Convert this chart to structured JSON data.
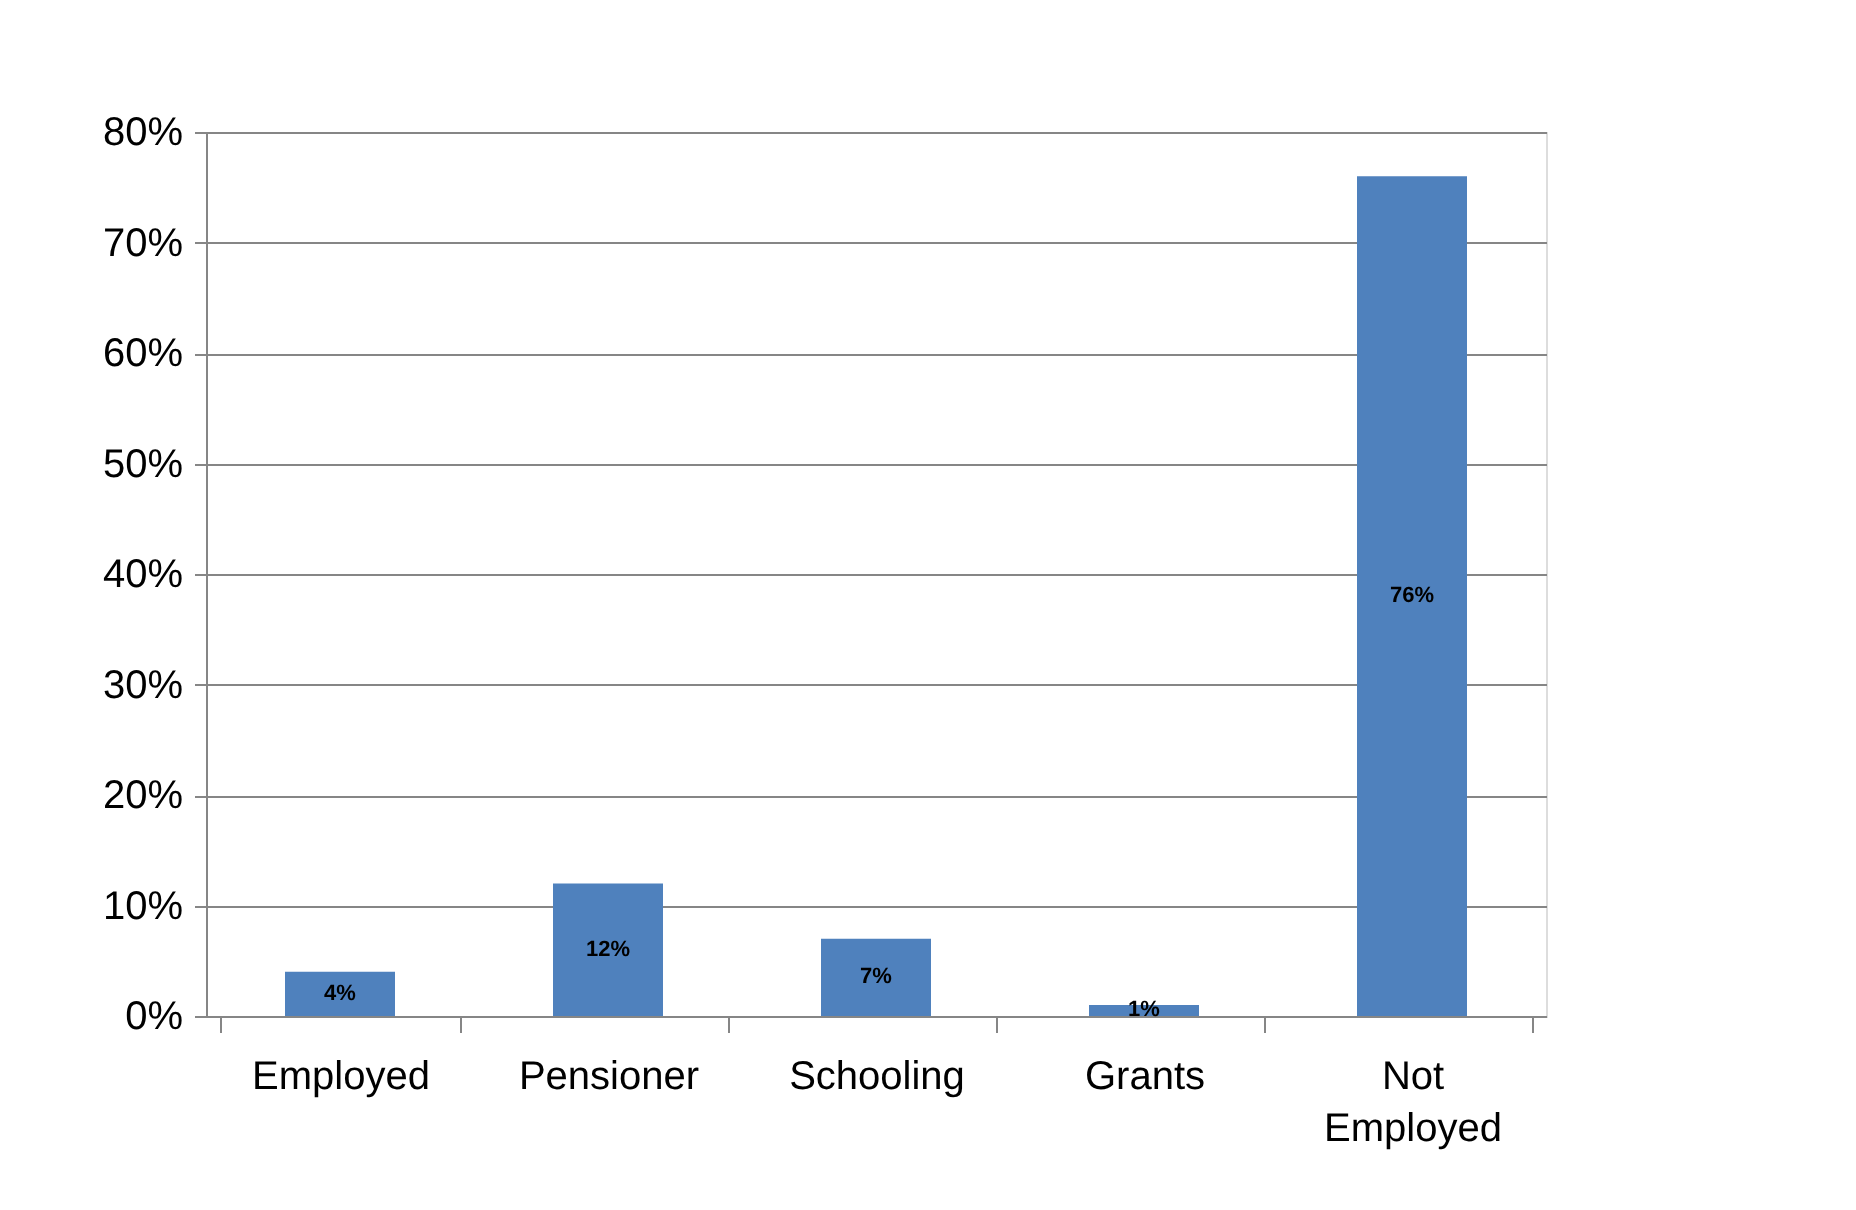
{
  "chart_data": {
    "type": "bar",
    "categories": [
      "Employed",
      "Pensioner",
      "Schooling",
      "Grants",
      "Not Employed"
    ],
    "values": [
      4,
      12,
      7,
      1,
      76
    ],
    "value_labels": [
      "4%",
      "12%",
      "7%",
      "1%",
      "76%"
    ],
    "color": "#4f81bd",
    "ylim": [
      0,
      80
    ],
    "yticks": [
      {
        "value": 0,
        "label": "0%"
      },
      {
        "value": 10,
        "label": "10%"
      },
      {
        "value": 20,
        "label": "20%"
      },
      {
        "value": 30,
        "label": "30%"
      },
      {
        "value": 40,
        "label": "40%"
      },
      {
        "value": 50,
        "label": "50%"
      },
      {
        "value": 60,
        "label": "60%"
      },
      {
        "value": 70,
        "label": "70%"
      },
      {
        "value": 80,
        "label": "80%"
      }
    ],
    "grid": "y"
  }
}
